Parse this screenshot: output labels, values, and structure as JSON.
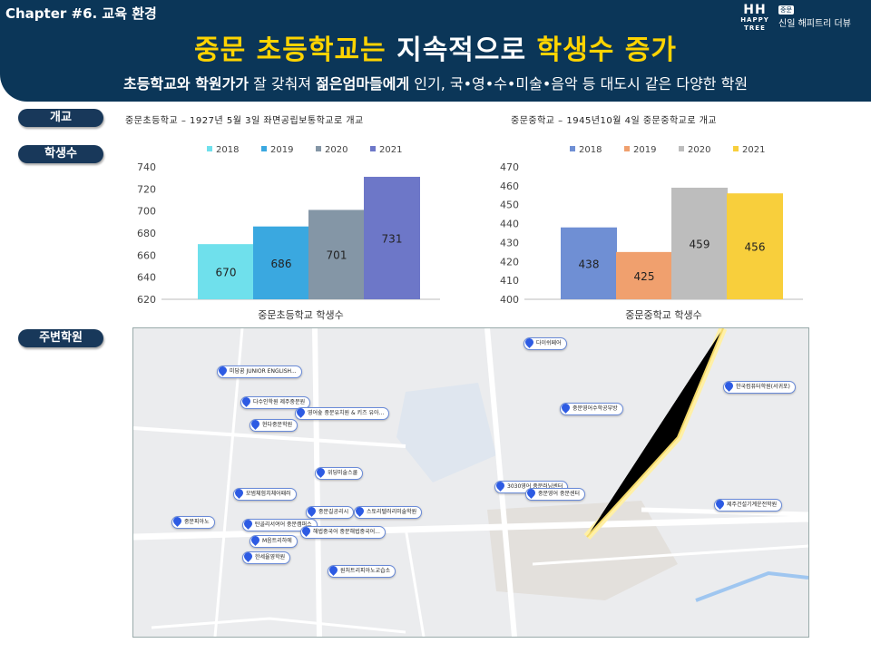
{
  "header": {
    "chapter": "Chapter #6. 교육 환경",
    "title_part1": "중문 초등학교는 ",
    "title_part2": "지속적으로",
    "title_part3": " 학생수 증가",
    "subtitle_b1": "초등학교와 학원가가",
    "subtitle_t1": " 잘 갖춰져 ",
    "subtitle_b2": "젊은엄마들에게",
    "subtitle_t2": " 인기, 국•영•수•미술•음악 등 대도시 같은 다양한 학원"
  },
  "logo": {
    "mark": "HH",
    "tag": "HAPPY TREE",
    "badge": "중문",
    "name": "신일 해피트리 더뷰"
  },
  "labels": {
    "opening": "개교",
    "students": "학생수",
    "academies": "주변학원"
  },
  "notes": {
    "elementary": "중문초등학교 – 1927년 5월 3일 좌면공립보통학교로 개교",
    "middle": "중문중학교 – 1945년10월 4일 중문중학교로 개교"
  },
  "chart_data": [
    {
      "type": "bar",
      "xlabel": "중문초등학교 학생수",
      "ylim": [
        620,
        740
      ],
      "yticks": [
        620,
        640,
        660,
        680,
        700,
        720,
        740
      ],
      "legend": "top",
      "grid": false,
      "series": [
        {
          "name": "2018",
          "values": [
            670
          ],
          "color": "#6fe0ec"
        },
        {
          "name": "2019",
          "values": [
            686
          ],
          "color": "#3aa8e0"
        },
        {
          "name": "2020",
          "values": [
            701
          ],
          "color": "#8496a6"
        },
        {
          "name": "2021",
          "values": [
            731
          ],
          "color": "#6d77c8"
        }
      ]
    },
    {
      "type": "bar",
      "xlabel": "중문중학교 학생수",
      "ylim": [
        400,
        470
      ],
      "yticks": [
        400,
        410,
        420,
        430,
        440,
        450,
        460,
        470
      ],
      "legend": "top",
      "grid": false,
      "series": [
        {
          "name": "2018",
          "values": [
            438
          ],
          "color": "#6f8fd4"
        },
        {
          "name": "2019",
          "values": [
            425
          ],
          "color": "#f0a06e"
        },
        {
          "name": "2020",
          "values": [
            459
          ],
          "color": "#bdbdbd"
        },
        {
          "name": "2021",
          "values": [
            456
          ],
          "color": "#f8cf3c"
        }
      ]
    }
  ],
  "map": {
    "academies": [
      "미담꿈 JUNIOR ENGLISH...",
      "다수인학원 제주중문원",
      "영어숲 중문유치원 & 키즈 유아...",
      "현다중문학원",
      "위딩미술스쿨",
      "모범체험치체어패러",
      "중문피아노",
      "중문길공리시",
      "스토리텔러리미술학원",
      "탄골리서여어 중문캠퍼스",
      "해법중국어 중문해법중국어...",
      "M음트리하에",
      "한세율영학원",
      "원처트리피아노교습소",
      "다이쉬페어",
      "중문영어수학공부방",
      "3030영어 중문러닝센터",
      "중문영어 중문센터",
      "한국컴퓨터학원(서귀포)",
      "제주건설기계운전학원"
    ]
  }
}
